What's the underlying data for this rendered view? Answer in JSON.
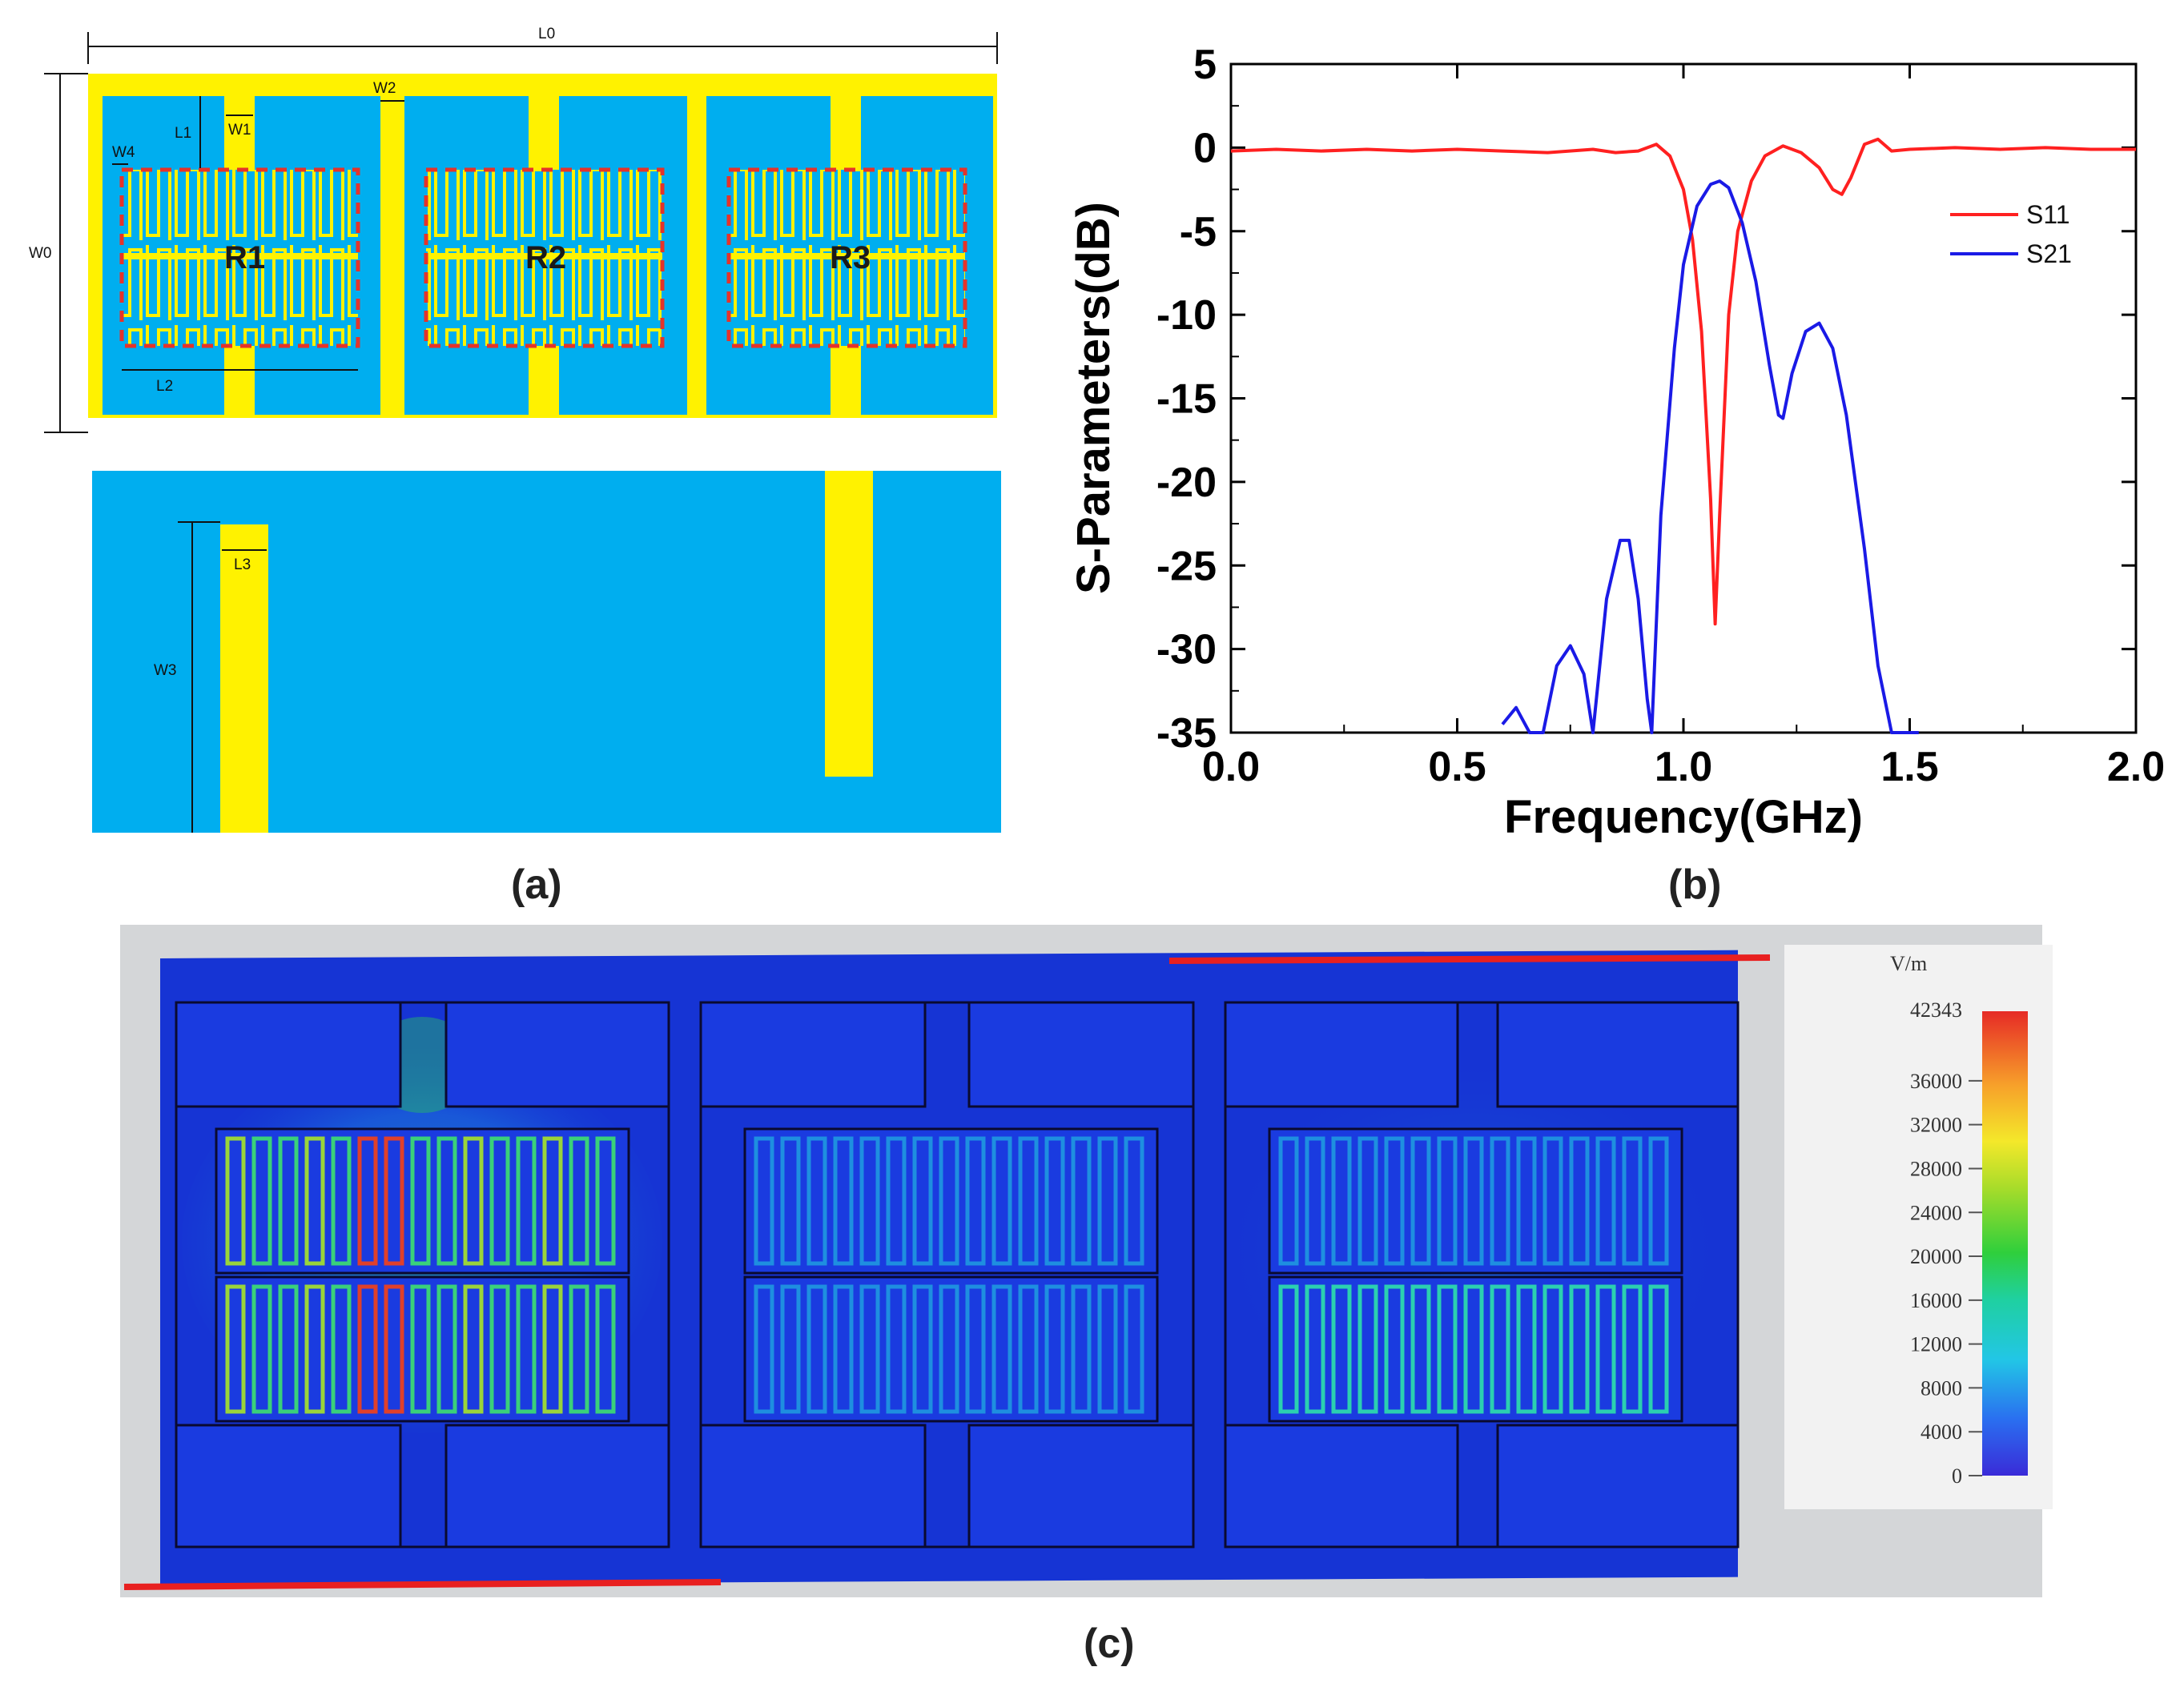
{
  "panel_a": {
    "label": "(a)",
    "dims": {
      "L0": "L0",
      "W0": "W0",
      "W1": "W1",
      "W2": "W2",
      "W3": "W3",
      "W4": "W4",
      "L1": "L1",
      "L2": "L2",
      "L3": "L3"
    },
    "resonators": [
      "R1",
      "R2",
      "R3"
    ],
    "colors": {
      "substrate": "#00AEEF",
      "metal": "#FFF200",
      "dash": "#E5332A"
    }
  },
  "panel_b": {
    "label": "(b)"
  },
  "panel_c": {
    "label": "(c)",
    "colorbar": {
      "unit": "V/m",
      "max_label": "42343",
      "ticks": [
        "36000",
        "32000",
        "28000",
        "24000",
        "20000",
        "16000",
        "12000",
        "8000",
        "4000",
        "0"
      ]
    }
  },
  "chart_data": {
    "type": "line",
    "title": "",
    "xlabel": "Frequency(GHz)",
    "ylabel": "S-Parameters(dB)",
    "xlim": [
      0.0,
      2.0
    ],
    "ylim": [
      -35,
      5
    ],
    "xticks": [
      "0.0",
      "0.5",
      "1.0",
      "1.5",
      "2.0"
    ],
    "yticks": [
      "5",
      "0",
      "-5",
      "-10",
      "-15",
      "-20",
      "-25",
      "-30",
      "-35"
    ],
    "legend_position": "right",
    "series": [
      {
        "name": "S11",
        "color": "#FF2020",
        "x": [
          0.0,
          0.1,
          0.2,
          0.3,
          0.4,
          0.5,
          0.6,
          0.7,
          0.8,
          0.85,
          0.9,
          0.94,
          0.97,
          1.0,
          1.02,
          1.04,
          1.06,
          1.07,
          1.08,
          1.1,
          1.12,
          1.15,
          1.18,
          1.22,
          1.26,
          1.3,
          1.33,
          1.35,
          1.37,
          1.4,
          1.43,
          1.46,
          1.5,
          1.6,
          1.7,
          1.8,
          1.9,
          2.0
        ],
        "y": [
          -0.2,
          -0.1,
          -0.2,
          -0.1,
          -0.2,
          -0.1,
          -0.2,
          -0.3,
          -0.1,
          -0.3,
          -0.2,
          0.2,
          -0.5,
          -2.5,
          -5.5,
          -11,
          -21,
          -28.5,
          -22,
          -10,
          -5,
          -2,
          -0.5,
          0.1,
          -0.3,
          -1.2,
          -2.5,
          -2.8,
          -1.8,
          0.2,
          0.5,
          -0.2,
          -0.1,
          0.0,
          -0.1,
          0.0,
          -0.1,
          -0.1
        ]
      },
      {
        "name": "S21",
        "color": "#1A1AE6",
        "x": [
          0.6,
          0.63,
          0.66,
          0.69,
          0.72,
          0.75,
          0.78,
          0.8,
          0.83,
          0.86,
          0.88,
          0.9,
          0.92,
          0.93,
          0.95,
          0.98,
          1.0,
          1.03,
          1.06,
          1.08,
          1.1,
          1.13,
          1.16,
          1.19,
          1.21,
          1.22,
          1.24,
          1.27,
          1.3,
          1.33,
          1.36,
          1.4,
          1.43,
          1.46,
          1.5,
          1.52
        ],
        "y": [
          -34.5,
          -33.5,
          -35,
          -35,
          -31,
          -29.8,
          -31.5,
          -35,
          -27,
          -23.5,
          -23.5,
          -27,
          -33,
          -35,
          -22,
          -12,
          -7,
          -3.5,
          -2.2,
          -2.0,
          -2.4,
          -4.5,
          -8,
          -13,
          -16,
          -16.2,
          -13.5,
          -11,
          -10.5,
          -12,
          -16,
          -24,
          -31,
          -35,
          -35,
          -35
        ]
      }
    ]
  }
}
